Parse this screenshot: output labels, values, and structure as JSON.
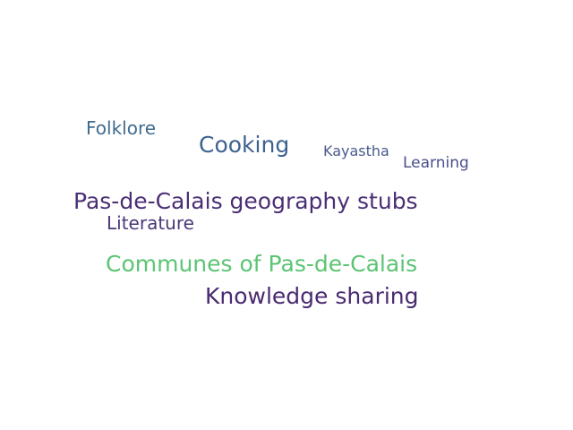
{
  "words": [
    {
      "id": "folklore",
      "text": "Folklore",
      "color": "#3f6b8f"
    },
    {
      "id": "cooking",
      "text": "Cooking",
      "color": "#3e628f"
    },
    {
      "id": "kayastha",
      "text": "Kayastha",
      "color": "#4a5a8c"
    },
    {
      "id": "learning",
      "text": "Learning",
      "color": "#4a4f8a"
    },
    {
      "id": "pas-de-calais-geography-stubs",
      "text": "Pas-de-Calais geography stubs",
      "color": "#4b2f75"
    },
    {
      "id": "literature",
      "text": "Literature",
      "color": "#4a3878"
    },
    {
      "id": "communes-of-pas-de-calais",
      "text": "Communes of Pas-de-Calais",
      "color": "#5cc474"
    },
    {
      "id": "knowledge-sharing",
      "text": "Knowledge sharing",
      "color": "#4a2a70"
    }
  ]
}
